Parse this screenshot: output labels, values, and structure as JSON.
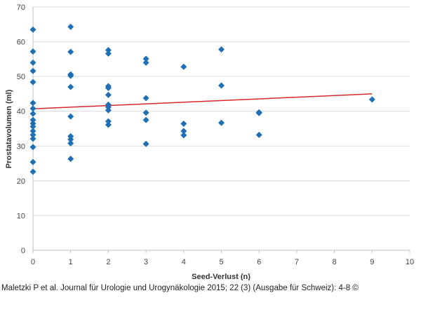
{
  "chart_data": {
    "type": "scatter",
    "title": "",
    "xlabel": "Seed-Verlust (n)",
    "ylabel": "Prostatavolumen (ml)",
    "xlim": [
      0,
      10
    ],
    "ylim": [
      0,
      70
    ],
    "xticks": [
      0,
      1,
      2,
      3,
      4,
      5,
      6,
      7,
      8,
      9,
      10
    ],
    "yticks": [
      0,
      10,
      20,
      30,
      40,
      50,
      60,
      70
    ],
    "grid": "horizontal",
    "legend": "none",
    "marker": "diamond",
    "colors": {
      "points": "#1f6fb5",
      "trendline": "#d62728",
      "grid": "#d9d9d9"
    },
    "series": [
      {
        "points": [
          [
            0,
            63.5
          ],
          [
            0,
            57.2
          ],
          [
            0,
            54.0
          ],
          [
            0,
            51.6
          ],
          [
            0,
            48.4
          ],
          [
            0,
            42.4
          ],
          [
            0,
            40.8
          ],
          [
            0,
            39.3
          ],
          [
            0,
            37.5
          ],
          [
            0,
            36.5
          ],
          [
            0,
            35.6
          ],
          [
            0,
            34.3
          ],
          [
            0,
            33.2
          ],
          [
            0,
            32.1
          ],
          [
            0,
            29.7
          ],
          [
            0,
            25.4
          ],
          [
            0,
            22.6
          ],
          [
            1,
            64.3
          ],
          [
            1,
            57.1
          ],
          [
            1,
            50.6
          ],
          [
            1,
            50.2
          ],
          [
            1,
            47.0
          ],
          [
            1,
            38.5
          ],
          [
            1,
            32.8
          ],
          [
            1,
            31.9
          ],
          [
            1,
            30.8
          ],
          [
            1,
            26.3
          ],
          [
            2,
            57.6
          ],
          [
            2,
            56.6
          ],
          [
            2,
            47.2
          ],
          [
            2,
            46.7
          ],
          [
            2,
            44.7
          ],
          [
            2,
            41.9
          ],
          [
            2,
            41.2
          ],
          [
            2,
            40.3
          ],
          [
            2,
            37.1
          ],
          [
            2,
            36.1
          ],
          [
            3,
            55.1
          ],
          [
            3,
            54.0
          ],
          [
            3,
            43.8
          ],
          [
            3,
            39.6
          ],
          [
            3,
            37.5
          ],
          [
            3,
            30.6
          ],
          [
            4,
            52.8
          ],
          [
            4,
            36.4
          ],
          [
            4,
            34.3
          ],
          [
            4,
            33.1
          ],
          [
            5,
            57.8
          ],
          [
            5,
            47.4
          ],
          [
            5,
            36.7
          ],
          [
            6,
            39.7
          ],
          [
            6,
            39.5
          ],
          [
            6,
            33.2
          ],
          [
            9,
            43.4
          ]
        ]
      }
    ],
    "trendline": {
      "x": [
        0,
        9
      ],
      "y": [
        40.7,
        45.0
      ]
    }
  },
  "citation": "Maletzki P et al. Journal für Urologie und Urogynäkologie 2015; 22 (3) (Ausgabe für Schweiz): 4-8 ©"
}
